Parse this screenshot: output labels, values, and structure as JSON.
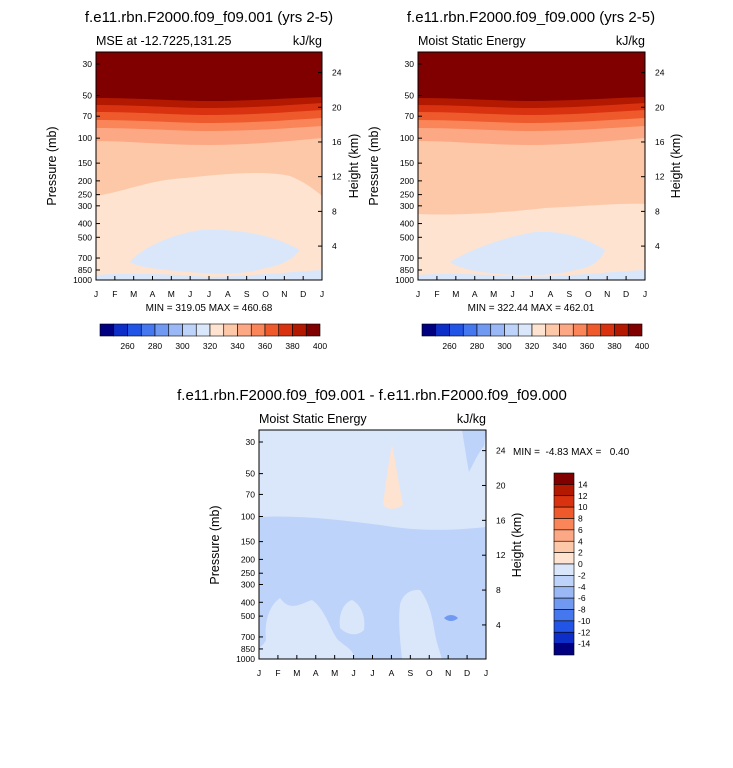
{
  "colors": {
    "palette": [
      "#000080",
      "#0d2fc8",
      "#2255e6",
      "#4577ee",
      "#7099f2",
      "#9ab8f6",
      "#bed3f9",
      "#dae7fb",
      "#fde3d0",
      "#fdc8a8",
      "#fca884",
      "#f98558",
      "#ee5a2c",
      "#d83210",
      "#b31800",
      "#800000"
    ],
    "mse_bands": [
      "#dae7fb",
      "#fde3d0",
      "#fdc8a8",
      "#fca884",
      "#f98558",
      "#ee5a2c",
      "#d83210",
      "#b31800",
      "#800000"
    ],
    "diff_bands": [
      "#7099f2",
      "#bed3f9",
      "#dae7fb",
      "#fde3d0"
    ]
  },
  "chart_data": [
    {
      "id": "left",
      "type": "contour",
      "title": "f.e11.rbn.F2000.f09_f09.001 (yrs 2-5)",
      "subtitle_left": "MSE at -12.7225,131.25",
      "subtitle_right": "kJ/kg",
      "ylabel": "Pressure (mb)",
      "ylabel_right": "Height (km)",
      "months": [
        "J",
        "F",
        "M",
        "A",
        "M",
        "J",
        "J",
        "A",
        "S",
        "O",
        "N",
        "D",
        "J"
      ],
      "pressure_ticks": [
        "30",
        "50",
        "70",
        "100",
        "150",
        "200",
        "250",
        "300",
        "400",
        "500",
        "700",
        "850",
        "1000"
      ],
      "pressure_values": [
        30,
        50,
        70,
        100,
        150,
        200,
        250,
        300,
        400,
        500,
        700,
        850,
        1000
      ],
      "height_ticks": [
        "24",
        "20",
        "16",
        "12",
        "8",
        "4"
      ],
      "height_values": [
        24,
        20,
        16,
        12,
        8,
        4
      ],
      "stats": "MIN = 319.05  MAX = 460.68",
      "min": 319.05,
      "max": 460.68,
      "colorbar_labels": [
        "260",
        "280",
        "300",
        "320",
        "340",
        "360",
        "380",
        "400"
      ],
      "colorbar_levels": [
        250,
        260,
        270,
        280,
        290,
        300,
        310,
        320,
        330,
        340,
        350,
        360,
        370,
        380,
        390,
        400,
        410
      ]
    },
    {
      "id": "right",
      "type": "contour",
      "title": "f.e11.rbn.F2000.f09_f09.000 (yrs 2-5)",
      "subtitle_left": "Moist Static Energy",
      "subtitle_right": "kJ/kg",
      "ylabel": "Pressure (mb)",
      "ylabel_right": "Height (km)",
      "months": [
        "J",
        "F",
        "M",
        "A",
        "M",
        "J",
        "J",
        "A",
        "S",
        "O",
        "N",
        "D",
        "J"
      ],
      "pressure_ticks": [
        "30",
        "50",
        "70",
        "100",
        "150",
        "200",
        "250",
        "300",
        "400",
        "500",
        "700",
        "850",
        "1000"
      ],
      "pressure_values": [
        30,
        50,
        70,
        100,
        150,
        200,
        250,
        300,
        400,
        500,
        700,
        850,
        1000
      ],
      "height_ticks": [
        "24",
        "20",
        "16",
        "12",
        "8",
        "4"
      ],
      "height_values": [
        24,
        20,
        16,
        12,
        8,
        4
      ],
      "stats": "MIN = 322.44  MAX = 462.01",
      "min": 322.44,
      "max": 462.01,
      "colorbar_labels": [
        "260",
        "280",
        "300",
        "320",
        "340",
        "360",
        "380",
        "400"
      ],
      "colorbar_levels": [
        250,
        260,
        270,
        280,
        290,
        300,
        310,
        320,
        330,
        340,
        350,
        360,
        370,
        380,
        390,
        400,
        410
      ]
    },
    {
      "id": "diff",
      "type": "contour",
      "title": "f.e11.rbn.F2000.f09_f09.001 - f.e11.rbn.F2000.f09_f09.000",
      "subtitle_left": "Moist Static Energy",
      "subtitle_right": "kJ/kg",
      "ylabel": "Pressure (mb)",
      "ylabel_right": "Height (km)",
      "months": [
        "J",
        "F",
        "M",
        "A",
        "M",
        "J",
        "J",
        "A",
        "S",
        "O",
        "N",
        "D",
        "J"
      ],
      "pressure_ticks": [
        "30",
        "50",
        "70",
        "100",
        "150",
        "200",
        "250",
        "300",
        "400",
        "500",
        "700",
        "850",
        "1000"
      ],
      "pressure_values": [
        30,
        50,
        70,
        100,
        150,
        200,
        250,
        300,
        400,
        500,
        700,
        850,
        1000
      ],
      "height_ticks": [
        "24",
        "20",
        "16",
        "12",
        "8",
        "4"
      ],
      "height_values": [
        24,
        20,
        16,
        12,
        8,
        4
      ],
      "stats": "MIN =  -4.83 MAX =   0.40",
      "min": -4.83,
      "max": 0.4,
      "colorbar_labels": [
        "14",
        "12",
        "10",
        "8",
        "6",
        "4",
        "2",
        "0",
        "-2",
        "-4",
        "-6",
        "-8",
        "-10",
        "-12",
        "-14"
      ],
      "colorbar_levels": [
        14,
        12,
        10,
        8,
        6,
        4,
        2,
        0,
        -2,
        -4,
        -6,
        -8,
        -10,
        -12,
        -14
      ]
    }
  ]
}
